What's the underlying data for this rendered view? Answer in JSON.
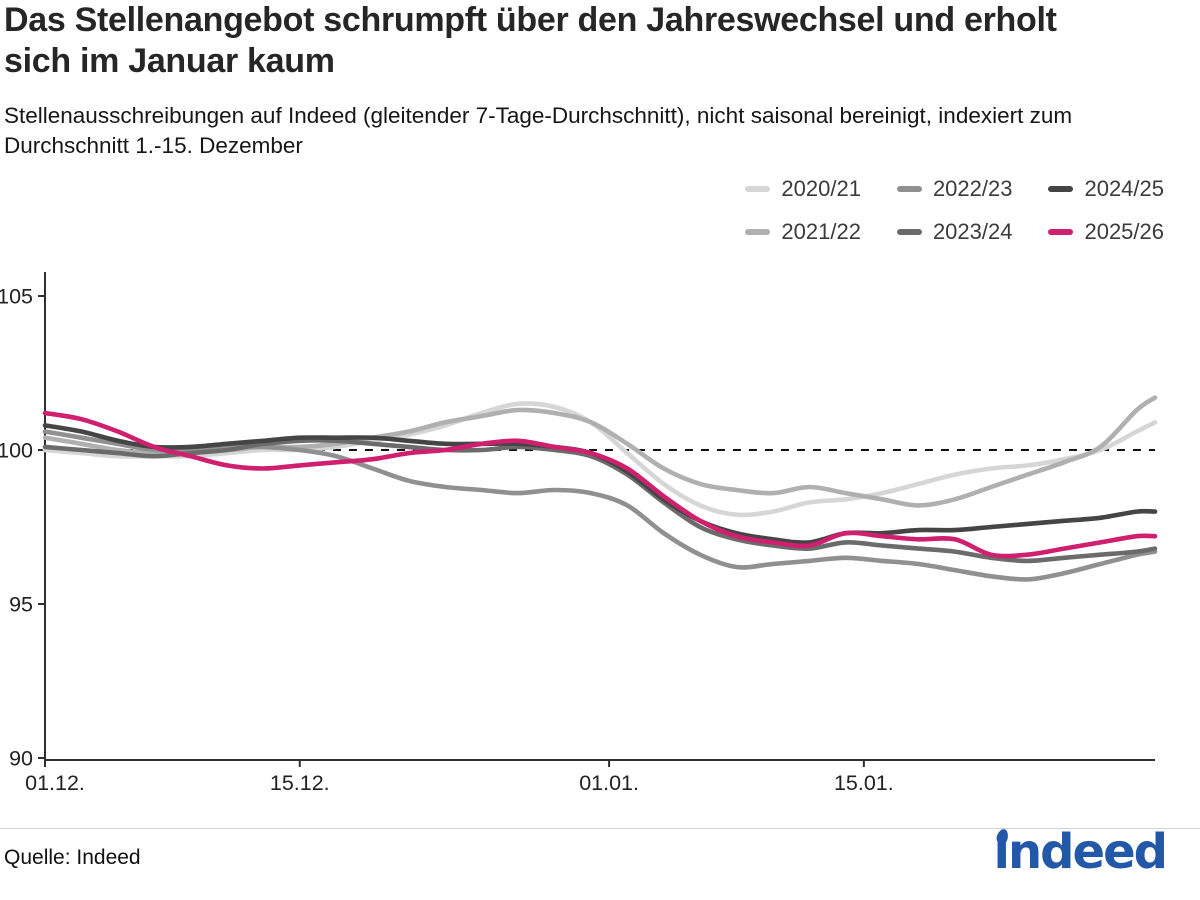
{
  "header": {
    "title": "Das Stellenangebot schrumpft über den Jahreswechsel und erholt sich im Januar kaum",
    "subtitle": "Stellenausschreibungen auf Indeed (gleitender 7-Tage-Durchschnitt), nicht saisonal bereinigt, indexiert zum Durchschnitt 1.-15. Dezember"
  },
  "footer": {
    "source": "Quelle: Indeed",
    "logo_text": "indeed",
    "logo_color": "#2357a7"
  },
  "chart_data": {
    "type": "line",
    "title": "Das Stellenangebot schrumpft über den Jahreswechsel und erholt sich im Januar kaum",
    "subtitle": "Stellenausschreibungen auf Indeed (gleitender 7-Tage-Durchschnitt), nicht saisonal bereinigt, indexiert zum Durchschnitt 1.-15. Dezember",
    "grid": false,
    "legend_position": "top-right",
    "reference_line": 100,
    "x_axis": {
      "tick_labels": [
        "01.12.",
        "15.12.",
        "01.01.",
        "15.01."
      ],
      "tick_days": [
        0,
        14,
        31,
        45
      ],
      "domain_days": [
        0,
        61
      ]
    },
    "y_axis": {
      "ticks": [
        90,
        95,
        100,
        105
      ],
      "range": [
        90,
        105
      ]
    },
    "x_days": [
      0,
      2,
      4,
      6,
      8,
      10,
      12,
      14,
      16,
      18,
      20,
      22,
      24,
      26,
      28,
      30,
      32,
      34,
      36,
      38,
      40,
      42,
      44,
      46,
      48,
      50,
      52,
      54,
      56,
      58,
      60,
      61
    ],
    "series": [
      {
        "name": "2020/21",
        "color": "#d6d6d6",
        "values": [
          100.0,
          99.9,
          99.8,
          99.8,
          99.8,
          99.9,
          100.0,
          100.0,
          100.1,
          100.3,
          100.5,
          100.8,
          101.2,
          101.5,
          101.4,
          100.9,
          99.9,
          98.9,
          98.2,
          97.9,
          98.0,
          98.3,
          98.4,
          98.6,
          98.9,
          99.2,
          99.4,
          99.5,
          99.7,
          100.0,
          100.6,
          100.9
        ]
      },
      {
        "name": "2021/22",
        "color": "#b0b0b0",
        "values": [
          100.4,
          100.2,
          100.0,
          99.9,
          100.0,
          100.0,
          100.1,
          100.1,
          100.2,
          100.4,
          100.6,
          100.9,
          101.1,
          101.3,
          101.2,
          100.9,
          100.2,
          99.4,
          98.9,
          98.7,
          98.6,
          98.8,
          98.6,
          98.4,
          98.2,
          98.4,
          98.8,
          99.2,
          99.6,
          100.1,
          101.3,
          101.7
        ]
      },
      {
        "name": "2022/23",
        "color": "#909090",
        "values": [
          100.6,
          100.4,
          100.2,
          100.0,
          100.0,
          100.1,
          100.1,
          100.0,
          99.8,
          99.4,
          99.0,
          98.8,
          98.7,
          98.6,
          98.7,
          98.6,
          98.2,
          97.3,
          96.6,
          96.2,
          96.3,
          96.4,
          96.5,
          96.4,
          96.3,
          96.1,
          95.9,
          95.8,
          96.0,
          96.3,
          96.6,
          96.7
        ]
      },
      {
        "name": "2023/24",
        "color": "#6b6b6b",
        "values": [
          100.1,
          100.0,
          99.9,
          99.8,
          99.9,
          100.0,
          100.2,
          100.3,
          100.3,
          100.2,
          100.1,
          100.0,
          100.0,
          100.1,
          100.0,
          99.8,
          99.2,
          98.3,
          97.5,
          97.1,
          96.9,
          96.8,
          97.0,
          96.9,
          96.8,
          96.7,
          96.5,
          96.4,
          96.5,
          96.6,
          96.7,
          96.8
        ]
      },
      {
        "name": "2024/25",
        "color": "#454545",
        "values": [
          100.8,
          100.6,
          100.3,
          100.1,
          100.1,
          100.2,
          100.3,
          100.4,
          100.4,
          100.4,
          100.3,
          100.2,
          100.2,
          100.2,
          100.1,
          99.9,
          99.3,
          98.4,
          97.7,
          97.3,
          97.1,
          97.0,
          97.3,
          97.3,
          97.4,
          97.4,
          97.5,
          97.6,
          97.7,
          97.8,
          98.0,
          98.0
        ]
      },
      {
        "name": "2025/26",
        "color": "#cf1f6e",
        "values": [
          101.2,
          101.0,
          100.6,
          100.1,
          99.8,
          99.5,
          99.4,
          99.5,
          99.6,
          99.7,
          99.9,
          100.0,
          100.2,
          100.3,
          100.1,
          99.9,
          99.4,
          98.5,
          97.7,
          97.2,
          97.0,
          96.9,
          97.3,
          97.2,
          97.1,
          97.1,
          96.6,
          96.6,
          96.8,
          97.0,
          97.2,
          97.2
        ]
      }
    ],
    "legend_rows": [
      [
        "2020/21",
        "2022/23",
        "2024/25"
      ],
      [
        "2021/22",
        "2023/24",
        "2025/26"
      ]
    ]
  }
}
